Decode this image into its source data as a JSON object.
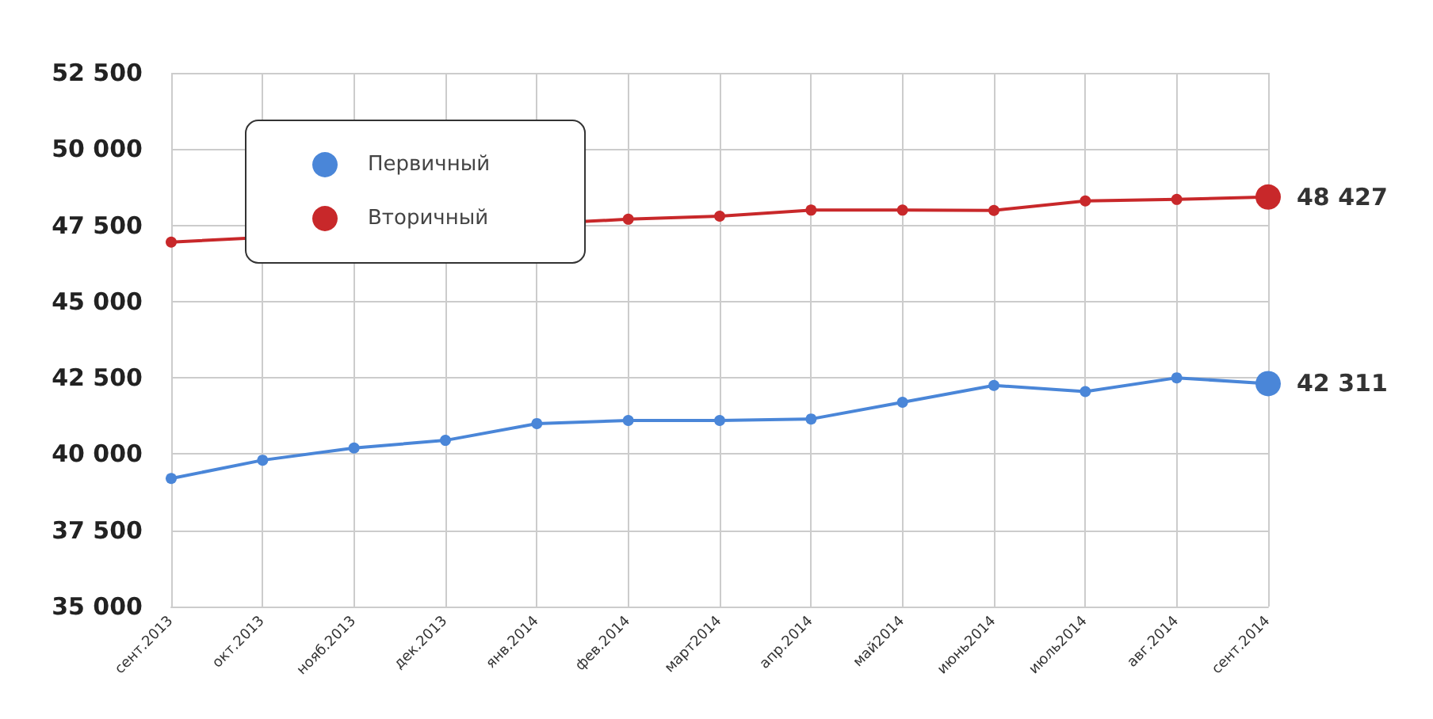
{
  "chart_data": {
    "type": "line",
    "categories": [
      "сент.2013",
      "окт.2013",
      "нояб.2013",
      "дек.2013",
      "янв.2014",
      "фев.2014",
      "март2014",
      "апр.2014",
      "май2014",
      "июнь2014",
      "июль2014",
      "авг.2014",
      "сент.2014"
    ],
    "series": [
      {
        "name": "Первичный",
        "color": "#4a86d8",
        "values": [
          39200,
          39800,
          40200,
          40450,
          41000,
          41100,
          41100,
          41150,
          41700,
          42250,
          42050,
          42500,
          42311
        ],
        "value_labels": [
          null,
          null,
          null,
          null,
          null,
          null,
          null,
          null,
          null,
          null,
          null,
          null,
          "42 311"
        ]
      },
      {
        "name": "Вторичный",
        "color": "#c8282a",
        "values": [
          46950,
          null,
          null,
          null,
          null,
          47700,
          47800,
          48000,
          48000,
          47990,
          48300,
          48350,
          48427
        ],
        "value_labels": [
          null,
          null,
          null,
          null,
          null,
          null,
          null,
          null,
          null,
          null,
          null,
          null,
          "48 427"
        ]
      }
    ],
    "ylim": [
      35000,
      52500
    ],
    "yticks": [
      {
        "value": 35000,
        "label": "35 000"
      },
      {
        "value": 37500,
        "label": "37 500"
      },
      {
        "value": 40000,
        "label": "40 000"
      },
      {
        "value": 42500,
        "label": "42 500"
      },
      {
        "value": 45000,
        "label": "45 000"
      },
      {
        "value": 47500,
        "label": "47 500"
      },
      {
        "value": 50000,
        "label": "50 000"
      },
      {
        "value": 52500,
        "label": "52 500"
      }
    ],
    "grid": true,
    "legend": "top left",
    "marker": "circle",
    "line_style": "solid"
  }
}
